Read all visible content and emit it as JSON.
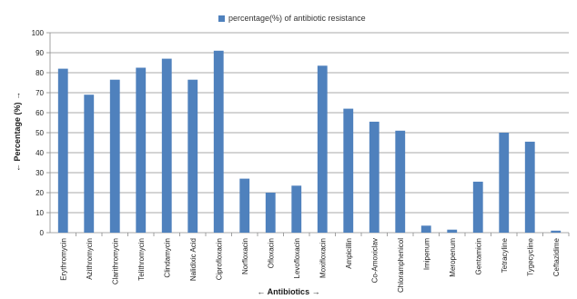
{
  "chart_data": {
    "type": "bar",
    "legend": "percentage(%) of antibiotic resistance",
    "legend_position": "top",
    "xlabel": "← Antibiotics →",
    "ylabel": "← Percentage (%) →",
    "ylim": [
      0,
      100
    ],
    "ytick_step": 10,
    "grid": true,
    "bar_color": "#4f81bd",
    "categories": [
      "Erythromycin",
      "Azithromycin",
      "Clarithromycin",
      "Telithromycin",
      "Clindamycin",
      "Nalidixic Acid",
      "Ciprofloxacin",
      "Norfloxacin",
      "Ofloxacin",
      "Levofloxacin",
      "Moxifloxacin",
      "Ampicillin",
      "Co-Amoxiclav",
      "Chloramphenicol",
      "Imipenum",
      "Meropenum",
      "Gentamicin",
      "Tetracyline",
      "Tygecycline",
      "Ceftazidime"
    ],
    "series": [
      {
        "name": "percentage(%) of antibiotic resistance",
        "values": [
          82,
          69,
          76.5,
          82.5,
          87,
          76.5,
          91,
          27,
          20,
          23.5,
          83.5,
          62,
          55.5,
          51,
          3.5,
          1.5,
          25.5,
          50,
          45.5,
          1
        ]
      }
    ]
  }
}
